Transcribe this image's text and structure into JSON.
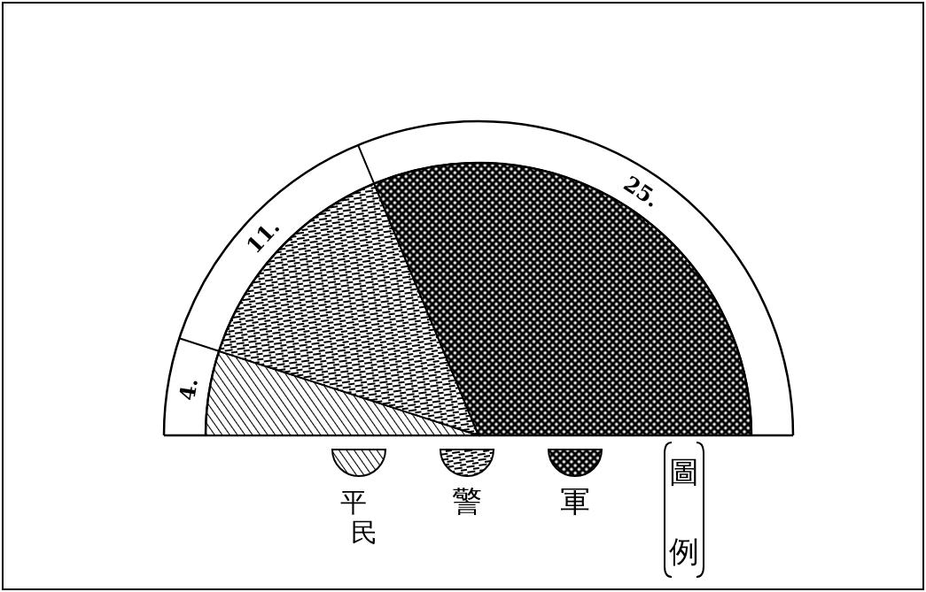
{
  "chart_data": {
    "type": "pie",
    "categories": [
      "平民",
      "警",
      "軍"
    ],
    "values": [
      4,
      11,
      25
    ],
    "colors": [
      "#000000",
      "#000000",
      "#000000"
    ],
    "value_labels": [
      "4.",
      "11.",
      "25."
    ],
    "legend": "bottom",
    "legend_title": "圖例"
  }
}
